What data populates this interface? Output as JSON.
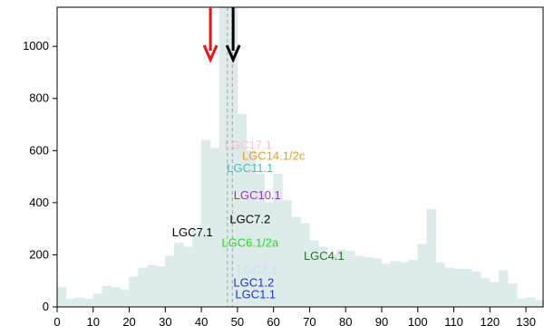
{
  "chart_data": {
    "type": "bar",
    "bin_width": 2.5,
    "bins_start": [
      0,
      2.5,
      5,
      7.5,
      10,
      12.5,
      15,
      17.5,
      20,
      22.5,
      25,
      27.5,
      30,
      32.5,
      35,
      37.5,
      40,
      42.5,
      45,
      47.5,
      50,
      52.5,
      55,
      57.5,
      60,
      62.5,
      65,
      67.5,
      70,
      72.5,
      75,
      77.5,
      80,
      82.5,
      85,
      87.5,
      90,
      92.5,
      95,
      97.5,
      100,
      102.5,
      105,
      107.5,
      110,
      112.5,
      115,
      117.5,
      120,
      122.5,
      125,
      127.5,
      130,
      132.5
    ],
    "values": [
      75,
      30,
      35,
      30,
      50,
      80,
      75,
      65,
      115,
      150,
      160,
      155,
      195,
      245,
      230,
      290,
      640,
      610,
      1150,
      1150,
      740,
      600,
      510,
      400,
      510,
      410,
      345,
      320,
      255,
      230,
      200,
      220,
      215,
      195,
      190,
      185,
      165,
      175,
      170,
      180,
      240,
      375,
      170,
      150,
      145,
      145,
      135,
      110,
      95,
      140,
      90,
      30,
      35,
      25
    ],
    "color": "#deebeb",
    "xlim": [
      0,
      135
    ],
    "ylim": [
      0,
      1150
    ],
    "x_ticks": [
      0,
      10,
      20,
      30,
      40,
      50,
      60,
      70,
      80,
      90,
      100,
      110,
      120,
      130
    ],
    "y_ticks": [
      0,
      200,
      400,
      600,
      800,
      1000
    ],
    "dashed_lines": [
      {
        "x": 47.2,
        "color": "#b0b0b0"
      },
      {
        "x": 48.6,
        "color": "#b0b0b0"
      }
    ],
    "arrows": [
      {
        "x": 42.5,
        "color": "#ee1111"
      },
      {
        "x": 48.8,
        "color": "#000000"
      }
    ],
    "annotations": [
      {
        "text": "LGC17.1",
        "x": 53,
        "y": 620,
        "color": "#f5c0c8"
      },
      {
        "text": "LGC14.1/2c",
        "x": 60,
        "y": 578,
        "color": "#e6a020"
      },
      {
        "text": "LGC11.1",
        "x": 53.5,
        "y": 532,
        "color": "#40c0c0"
      },
      {
        "text": "LGC10.1",
        "x": 55.5,
        "y": 428,
        "color": "#9933cc"
      },
      {
        "text": "LGC7.2",
        "x": 53.5,
        "y": 335,
        "color": "#000000"
      },
      {
        "text": "LGC7.1",
        "x": 37.5,
        "y": 285,
        "color": "#000000"
      },
      {
        "text": "LGC6.1/2a",
        "x": 53.5,
        "y": 245,
        "color": "#22dd22"
      },
      {
        "text": "LGC4.1",
        "x": 74,
        "y": 195,
        "color": "#227722"
      },
      {
        "text": "LGC2.1",
        "x": 55.5,
        "y": 140,
        "color": "#c8e0e8"
      },
      {
        "text": "LGC1.2",
        "x": 54.5,
        "y": 92,
        "color": "#2233cc"
      },
      {
        "text": "LGC1.1",
        "x": 55,
        "y": 47,
        "color": "#2233cc"
      }
    ]
  }
}
